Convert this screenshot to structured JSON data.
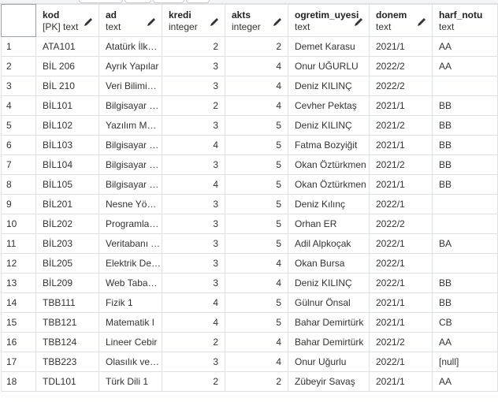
{
  "columns": [
    {
      "name": "kod",
      "type": "[PK] text"
    },
    {
      "name": "ad",
      "type": "text"
    },
    {
      "name": "kredi",
      "type": "integer"
    },
    {
      "name": "akts",
      "type": "integer"
    },
    {
      "name": "ogretim_uyesi",
      "type": "text"
    },
    {
      "name": "donem",
      "type": "text"
    },
    {
      "name": "harf_notu",
      "type": "text"
    }
  ],
  "rows": [
    {
      "n": "1",
      "kod": "ATA101",
      "ad": "Atatürk İlkeleri",
      "kredi": "2",
      "akts": "2",
      "ogretim_uyesi": "Demet Karasu",
      "donem": "2021/1",
      "harf_notu": "AA"
    },
    {
      "n": "2",
      "kod": "BİL 206",
      "ad": "Ayrık Yapılar",
      "kredi": "3",
      "akts": "4",
      "ogretim_uyesi": "Onur UĞURLU",
      "donem": "2022/2",
      "harf_notu": "AA"
    },
    {
      "n": "3",
      "kod": "BİL 210",
      "ad": "Veri Bilimine Giriş",
      "kredi": "3",
      "akts": "4",
      "ogretim_uyesi": "Deniz KILINÇ",
      "donem": "2022/2",
      "harf_notu": ""
    },
    {
      "n": "4",
      "kod": "BİL101",
      "ad": "Bilgisayar Mühendisliğine Giriş",
      "kredi": "2",
      "akts": "4",
      "ogretim_uyesi": "Cevher Pektaş",
      "donem": "2021/1",
      "harf_notu": "BB"
    },
    {
      "n": "5",
      "kod": "BİL102",
      "ad": "Yazılım Mühendisliği",
      "kredi": "3",
      "akts": "5",
      "ogretim_uyesi": "Deniz KILINÇ",
      "donem": "2021/2",
      "harf_notu": "BB"
    },
    {
      "n": "6",
      "kod": "BİL103",
      "ad": "Bilgisayar Programlama I",
      "kredi": "4",
      "akts": "5",
      "ogretim_uyesi": "Fatma Bozyiğit",
      "donem": "2021/1",
      "harf_notu": "BB"
    },
    {
      "n": "7",
      "kod": "BİL104",
      "ad": "Bilgisayar Programlama II",
      "kredi": "3",
      "akts": "5",
      "ogretim_uyesi": "Okan Öztürkmen",
      "donem": "2021/2",
      "harf_notu": "BB"
    },
    {
      "n": "8",
      "kod": "BİL105",
      "ad": "Bilgisayar Donanımı",
      "kredi": "4",
      "akts": "5",
      "ogretim_uyesi": "Okan Öztürkmen",
      "donem": "2021/1",
      "harf_notu": "BB"
    },
    {
      "n": "9",
      "kod": "BİL201",
      "ad": "Nesne Yönelimli Programlama",
      "kredi": "3",
      "akts": "5",
      "ogretim_uyesi": "Deniz Kılınç",
      "donem": "2022/1",
      "harf_notu": ""
    },
    {
      "n": "10",
      "kod": "BİL202",
      "ad": "Programlama Dilleri",
      "kredi": "3",
      "akts": "5",
      "ogretim_uyesi": "Orhan ER",
      "donem": "2022/2",
      "harf_notu": ""
    },
    {
      "n": "11",
      "kod": "BİL203",
      "ad": "Veritabanı Yönetim Sistemleri",
      "kredi": "3",
      "akts": "5",
      "ogretim_uyesi": "Adil Alpkoçak",
      "donem": "2022/1",
      "harf_notu": "BA"
    },
    {
      "n": "12",
      "kod": "BİL205",
      "ad": "Elektrik Devreleri",
      "kredi": "3",
      "akts": "4",
      "ogretim_uyesi": "Okan Bursa",
      "donem": "2022/1",
      "harf_notu": ""
    },
    {
      "n": "13",
      "kod": "BİL209",
      "ad": "Web Tabanlı Programlama",
      "kredi": "3",
      "akts": "4",
      "ogretim_uyesi": "Deniz KILINÇ",
      "donem": "2022/1",
      "harf_notu": "BB"
    },
    {
      "n": "14",
      "kod": "TBB111",
      "ad": "Fizik 1",
      "kredi": "4",
      "akts": "5",
      "ogretim_uyesi": "Gülnur Önsal",
      "donem": "2021/1",
      "harf_notu": "BB"
    },
    {
      "n": "15",
      "kod": "TBB121",
      "ad": "Matematik I",
      "kredi": "4",
      "akts": "5",
      "ogretim_uyesi": "Bahar Demirtürk",
      "donem": "2021/1",
      "harf_notu": "CB"
    },
    {
      "n": "16",
      "kod": "TBB124",
      "ad": "Lineer Cebir",
      "kredi": "2",
      "akts": "4",
      "ogretim_uyesi": "Bahar Demirtürk",
      "donem": "2021/2",
      "harf_notu": "AA"
    },
    {
      "n": "17",
      "kod": "TBB223",
      "ad": "Olasılık ve İstatistik",
      "kredi": "3",
      "akts": "4",
      "ogretim_uyesi": "Onur Uğurlu",
      "donem": "2022/1",
      "harf_notu": "[null]"
    },
    {
      "n": "18",
      "kod": "TDL101",
      "ad": "Türk Dili 1",
      "kredi": "2",
      "akts": "2",
      "ogretim_uyesi": "Zübeyir Savaş",
      "donem": "2021/1",
      "harf_notu": "AA"
    }
  ]
}
